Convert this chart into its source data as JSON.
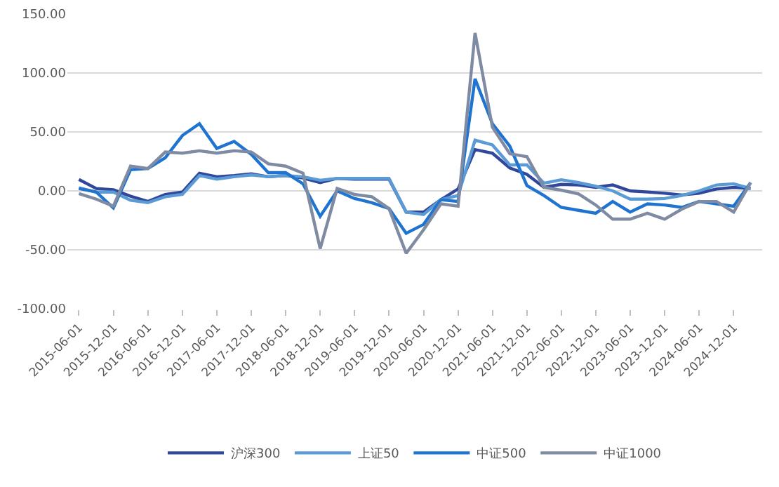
{
  "chart_data": {
    "type": "line",
    "x": [
      "2015-06-01",
      "2015-09-01",
      "2015-12-01",
      "2016-03-01",
      "2016-06-01",
      "2016-09-01",
      "2016-12-01",
      "2017-03-01",
      "2017-06-01",
      "2017-09-01",
      "2017-12-01",
      "2018-03-01",
      "2018-06-01",
      "2018-09-01",
      "2018-12-01",
      "2019-03-01",
      "2019-06-01",
      "2019-09-01",
      "2019-12-01",
      "2020-03-01",
      "2020-06-01",
      "2020-09-01",
      "2020-12-01",
      "2021-03-01",
      "2021-06-01",
      "2021-09-01",
      "2021-12-01",
      "2022-03-01",
      "2022-06-01",
      "2022-09-01",
      "2022-12-01",
      "2023-03-01",
      "2023-06-01",
      "2023-09-01",
      "2023-12-01",
      "2024-03-01",
      "2024-06-01",
      "2024-09-01",
      "2024-12-01",
      "2025-03-01"
    ],
    "series": [
      {
        "name": "沪深300",
        "color": "#30479c",
        "values": [
          9.7,
          2,
          1,
          -4.5,
          -9,
          -3,
          -1,
          15,
          12,
          13,
          14.5,
          12,
          13,
          11,
          7,
          10.6,
          10,
          10,
          10,
          -18,
          -18,
          -7.5,
          1.6,
          35,
          32,
          19.5,
          14,
          3,
          5.5,
          5,
          3,
          5,
          0,
          -1,
          -2,
          -3.5,
          -2,
          1.6,
          3,
          2
        ]
      },
      {
        "name": "上证50",
        "color": "#5b9bd5",
        "values": [
          2.6,
          -1,
          -1,
          -8,
          -10,
          -5,
          -3,
          13,
          10,
          12,
          13.5,
          12,
          13,
          12,
          9,
          10.6,
          10.6,
          10.6,
          10.6,
          -18,
          -20,
          -7.5,
          -4,
          43,
          39,
          22,
          22,
          6.5,
          9.4,
          7,
          4,
          0,
          -7,
          -7,
          -6.5,
          -4,
          0,
          5,
          6,
          2
        ]
      },
      {
        "name": "中证500",
        "color": "#1f74d0",
        "values": [
          2,
          -1,
          -14.5,
          18,
          19,
          28,
          47,
          57,
          36,
          42,
          31,
          15.5,
          15.5,
          6,
          -21.6,
          0,
          -6.5,
          -10,
          -15,
          -36,
          -28.5,
          -7.5,
          -9,
          95,
          57,
          38,
          4.5,
          -4,
          -14,
          -16.5,
          -19,
          -9,
          -18,
          -11,
          -12,
          -14,
          -9,
          -11,
          -13,
          7
        ]
      },
      {
        "name": "中证1000",
        "color": "#7f8ba3",
        "values": [
          -2.3,
          -7,
          -13,
          21,
          19,
          33,
          32,
          34,
          32,
          34,
          33,
          23,
          21,
          15,
          -49,
          2,
          -3,
          -5,
          -15,
          -53,
          -33,
          -11,
          -13,
          134,
          54,
          31.5,
          29,
          3,
          0.6,
          -2.6,
          -12,
          -24,
          -24,
          -19,
          -24,
          -15.5,
          -9,
          -9,
          -18,
          7
        ]
      }
    ],
    "xlim": [
      "2015-04-01",
      "2025-05-01"
    ],
    "xticks": [
      {
        "value": "2015-06-01",
        "label": "2015-06-01"
      },
      {
        "value": "2015-12-01",
        "label": "2015-12-01"
      },
      {
        "value": "2016-06-01",
        "label": "2016-06-01"
      },
      {
        "value": "2016-12-01",
        "label": "2016-12-01"
      },
      {
        "value": "2017-06-01",
        "label": "2017-06-01"
      },
      {
        "value": "2017-12-01",
        "label": "2017-12-01"
      },
      {
        "value": "2018-06-01",
        "label": "2018-06-01"
      },
      {
        "value": "2018-12-01",
        "label": "2018-12-01"
      },
      {
        "value": "2019-06-01",
        "label": "2019-06-01"
      },
      {
        "value": "2019-12-01",
        "label": "2019-12-01"
      },
      {
        "value": "2020-06-01",
        "label": "2020-06-01"
      },
      {
        "value": "2020-12-01",
        "label": "2020-12-01"
      },
      {
        "value": "2021-06-01",
        "label": "2021-06-01"
      },
      {
        "value": "2021-12-01",
        "label": "2021-12-01"
      },
      {
        "value": "2022-06-01",
        "label": "2022-06-01"
      },
      {
        "value": "2022-12-01",
        "label": "2022-12-01"
      },
      {
        "value": "2023-06-01",
        "label": "2023-06-01"
      },
      {
        "value": "2023-12-01",
        "label": "2023-12-01"
      },
      {
        "value": "2024-06-01",
        "label": "2024-06-01"
      },
      {
        "value": "2024-12-01",
        "label": "2024-12-01"
      }
    ],
    "ylim": [
      -100,
      150
    ],
    "yticks": [
      {
        "value": -100,
        "label": "-100.00"
      },
      {
        "value": -50,
        "label": "-50.00"
      },
      {
        "value": 0,
        "label": "0.00"
      },
      {
        "value": 50,
        "label": "50.00"
      },
      {
        "value": 100,
        "label": "100.00"
      },
      {
        "value": 150,
        "label": "150.00"
      }
    ],
    "grid": "y",
    "legend": "bottom",
    "marker": "none",
    "line_style": "solid"
  }
}
